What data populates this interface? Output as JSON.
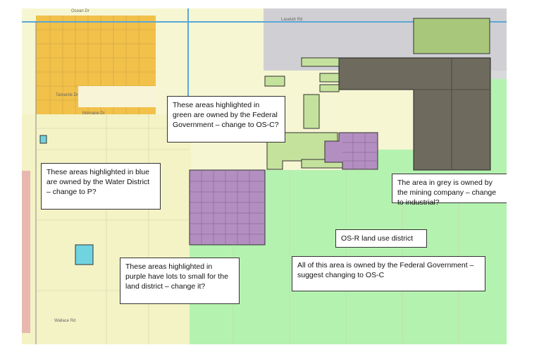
{
  "callouts": {
    "green": "These areas highlighted in green are owned by the Federal Government – change to OS-C?",
    "blue": "These areas highlighted in blue are owned by the Water District – change to P?",
    "grey": "The area in grey is owned by the mining company – change to industrial?",
    "osr": "OS-R land use district",
    "federal": "All of this area is owned by the Federal Government – suggest changing to OS-C",
    "purple": "These areas highlighted in purple have lots to small for the land district – change it?"
  },
  "road_labels": {
    "top_left": "Ocean Dr",
    "top_road": "Laselah Rd",
    "left_street": "Tamarisk Dr",
    "mid_street": "Mornane Dr",
    "small_left": "Tamarisk Dr",
    "bottom": "Wallace Rd"
  },
  "legend_colors": {
    "federal_green": "#c5e29c",
    "water_blue": "#6fd3e0",
    "mining_grey": "#6e6a5d",
    "purple_lots": "#b28fc0",
    "osr_green": "#b4f2b0",
    "residential_yellow": "#f2c14a",
    "base_cream": "#f6f6d3"
  }
}
